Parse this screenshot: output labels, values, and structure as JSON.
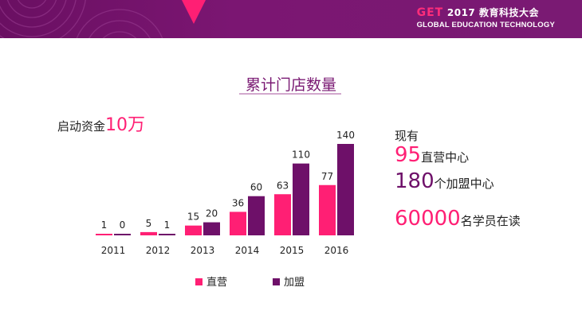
{
  "header": {
    "logo_text": "GET",
    "event_text": "2017 教育科技大会",
    "subtitle": "GLOBAL EDUCATION TECHNOLOGY"
  },
  "slide": {
    "title": "累计门店数量",
    "startup_label": "启动资金",
    "startup_amount": "10万"
  },
  "stats": {
    "prefix": "现有",
    "direct_count": "95",
    "direct_label": "直营中心",
    "franchise_count": "180",
    "franchise_label": "个加盟中心",
    "students_count": "60000",
    "students_label": "名学员在读"
  },
  "colors": {
    "brand_purple": "#7a1a73",
    "direct": "#ff1f74",
    "franchise": "#6e1069"
  },
  "chart_data": {
    "type": "bar",
    "title": "累计门店数量",
    "categories": [
      "2011",
      "2012",
      "2013",
      "2014",
      "2015",
      "2016"
    ],
    "series": [
      {
        "name": "直营",
        "color": "#ff1f74",
        "values": [
          1,
          5,
          15,
          36,
          63,
          77
        ]
      },
      {
        "name": "加盟",
        "color": "#6e1069",
        "values": [
          0,
          1,
          20,
          60,
          110,
          140
        ]
      }
    ],
    "ylim": [
      0,
      140
    ],
    "grid": false,
    "legend_position": "bottom"
  }
}
